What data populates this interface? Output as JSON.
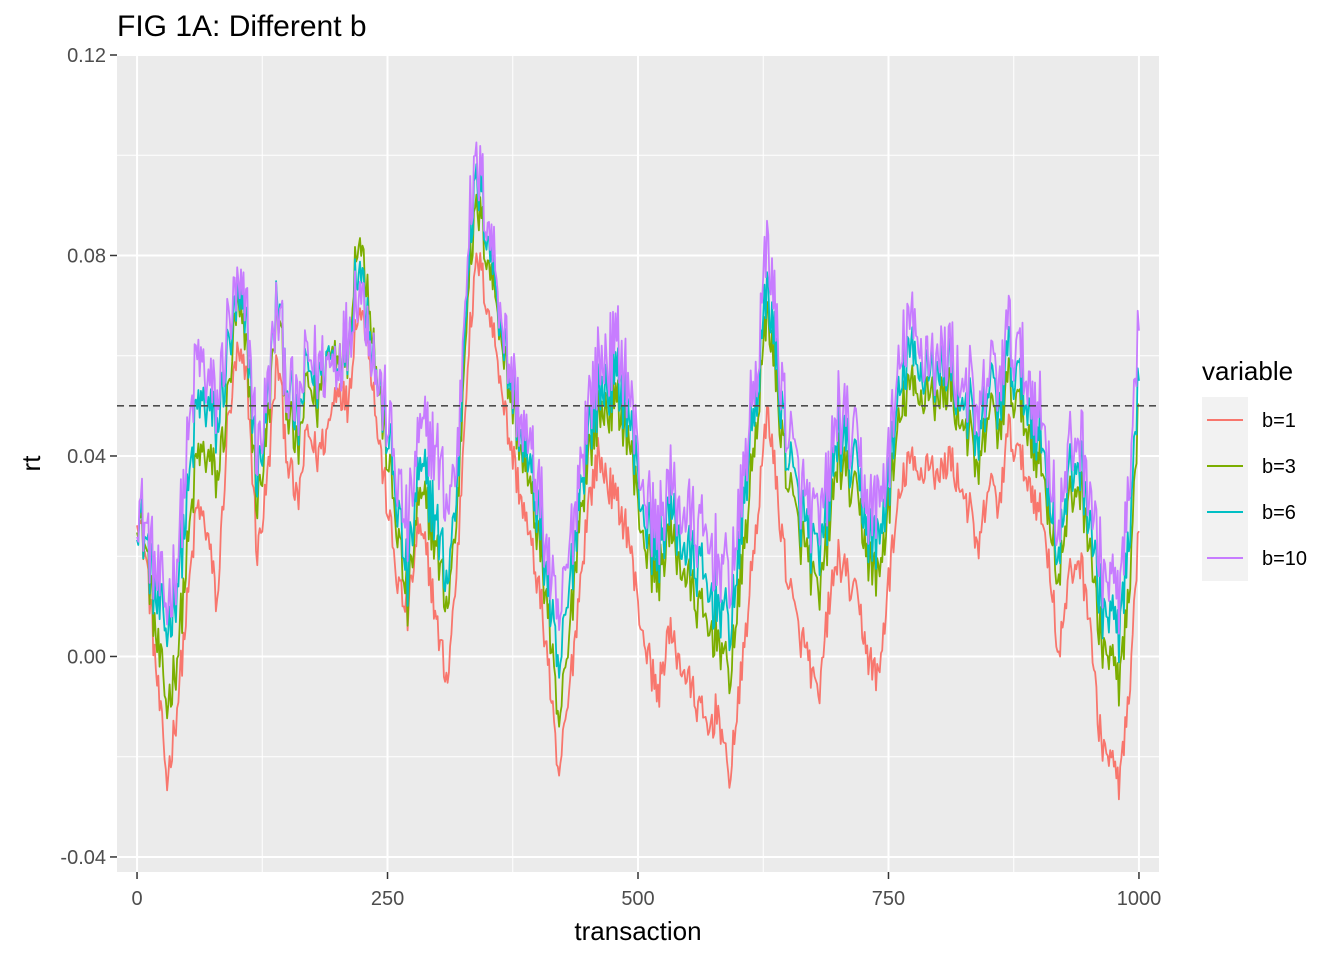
{
  "chart_data": {
    "type": "line",
    "title": "FIG 1A: Different b",
    "xlabel": "transaction",
    "ylabel": "rt",
    "xlim": [
      -20,
      1020
    ],
    "ylim": [
      -0.043,
      0.12
    ],
    "x_ticks": [
      0,
      250,
      500,
      750,
      1000
    ],
    "x_tick_labels": [
      "0",
      "250",
      "500",
      "750",
      "1000"
    ],
    "y_ticks": [
      -0.04,
      0.0,
      0.04,
      0.08,
      0.12
    ],
    "y_tick_labels": [
      "-0.04",
      "0.00",
      "0.04",
      "0.08",
      "0.12"
    ],
    "grid": true,
    "reference_line": {
      "y": 0.05,
      "style": "dashed"
    },
    "legend": {
      "title": "variable",
      "position": "right"
    },
    "x": [
      0,
      10,
      20,
      30,
      40,
      50,
      60,
      70,
      80,
      90,
      100,
      110,
      120,
      130,
      140,
      150,
      160,
      170,
      180,
      190,
      200,
      210,
      220,
      230,
      240,
      250,
      260,
      270,
      280,
      290,
      300,
      310,
      320,
      330,
      340,
      350,
      360,
      370,
      380,
      390,
      400,
      410,
      420,
      430,
      440,
      450,
      460,
      470,
      480,
      490,
      500,
      510,
      520,
      530,
      540,
      550,
      560,
      570,
      580,
      590,
      600,
      610,
      620,
      630,
      640,
      650,
      660,
      670,
      680,
      690,
      700,
      710,
      720,
      730,
      740,
      750,
      760,
      770,
      780,
      790,
      800,
      810,
      820,
      830,
      840,
      850,
      860,
      870,
      880,
      890,
      900,
      910,
      920,
      930,
      940,
      950,
      960,
      970,
      980,
      990,
      1000
    ],
    "series": [
      {
        "name": "b=1",
        "color": "#F8766D",
        "values": [
          0.03,
          0.018,
          -0.005,
          -0.025,
          -0.01,
          0.01,
          0.03,
          0.025,
          0.01,
          0.045,
          0.06,
          0.055,
          0.02,
          0.035,
          0.06,
          0.04,
          0.03,
          0.045,
          0.04,
          0.045,
          0.055,
          0.05,
          0.07,
          0.065,
          0.045,
          0.03,
          0.015,
          0.008,
          0.025,
          0.02,
          0.005,
          -0.005,
          0.02,
          0.06,
          0.08,
          0.07,
          0.06,
          0.045,
          0.035,
          0.025,
          0.015,
          0.0,
          -0.025,
          -0.01,
          0.01,
          0.03,
          0.04,
          0.035,
          0.03,
          0.025,
          0.01,
          0.0,
          -0.008,
          0.005,
          0.0,
          -0.005,
          -0.01,
          -0.015,
          -0.01,
          -0.025,
          -0.01,
          0.01,
          0.03,
          0.05,
          0.03,
          0.015,
          0.005,
          0.0,
          -0.01,
          0.01,
          0.02,
          0.015,
          0.01,
          0.0,
          -0.005,
          0.015,
          0.03,
          0.04,
          0.035,
          0.04,
          0.035,
          0.04,
          0.035,
          0.03,
          0.02,
          0.035,
          0.03,
          0.045,
          0.04,
          0.035,
          0.03,
          0.02,
          0.0,
          0.015,
          0.02,
          0.01,
          -0.015,
          -0.02,
          -0.025,
          -0.01,
          0.025
        ]
      },
      {
        "name": "b=3",
        "color": "#7CAE00",
        "values": [
          0.03,
          0.02,
          0.002,
          -0.01,
          0.0,
          0.02,
          0.04,
          0.04,
          0.035,
          0.05,
          0.07,
          0.06,
          0.03,
          0.045,
          0.07,
          0.05,
          0.04,
          0.055,
          0.05,
          0.06,
          0.062,
          0.06,
          0.085,
          0.075,
          0.055,
          0.04,
          0.025,
          0.01,
          0.03,
          0.03,
          0.02,
          0.01,
          0.03,
          0.075,
          0.09,
          0.08,
          0.07,
          0.055,
          0.045,
          0.035,
          0.025,
          0.01,
          -0.015,
          0.0,
          0.025,
          0.04,
          0.048,
          0.05,
          0.05,
          0.045,
          0.03,
          0.02,
          0.015,
          0.025,
          0.02,
          0.015,
          0.01,
          0.005,
          0.005,
          -0.005,
          0.01,
          0.03,
          0.05,
          0.07,
          0.05,
          0.035,
          0.025,
          0.02,
          0.01,
          0.025,
          0.04,
          0.035,
          0.03,
          0.02,
          0.015,
          0.03,
          0.045,
          0.055,
          0.05,
          0.055,
          0.05,
          0.055,
          0.048,
          0.045,
          0.035,
          0.05,
          0.045,
          0.055,
          0.05,
          0.045,
          0.04,
          0.03,
          0.015,
          0.03,
          0.035,
          0.025,
          0.005,
          0.0,
          -0.005,
          0.01,
          0.05
        ]
      },
      {
        "name": "b=6",
        "color": "#00BFC4",
        "values": [
          0.03,
          0.022,
          0.01,
          0.005,
          0.015,
          0.03,
          0.05,
          0.05,
          0.045,
          0.06,
          0.07,
          0.065,
          0.035,
          0.05,
          0.072,
          0.055,
          0.045,
          0.058,
          0.055,
          0.06,
          0.06,
          0.062,
          0.08,
          0.07,
          0.055,
          0.045,
          0.03,
          0.015,
          0.035,
          0.035,
          0.025,
          0.015,
          0.035,
          0.08,
          0.095,
          0.085,
          0.072,
          0.058,
          0.048,
          0.038,
          0.03,
          0.015,
          -0.005,
          0.01,
          0.03,
          0.045,
          0.052,
          0.055,
          0.055,
          0.05,
          0.035,
          0.025,
          0.02,
          0.03,
          0.025,
          0.02,
          0.018,
          0.012,
          0.012,
          0.005,
          0.018,
          0.04,
          0.055,
          0.075,
          0.055,
          0.04,
          0.03,
          0.025,
          0.018,
          0.03,
          0.045,
          0.04,
          0.035,
          0.025,
          0.022,
          0.035,
          0.05,
          0.062,
          0.055,
          0.06,
          0.055,
          0.06,
          0.052,
          0.05,
          0.04,
          0.055,
          0.05,
          0.06,
          0.055,
          0.05,
          0.045,
          0.035,
          0.02,
          0.035,
          0.04,
          0.03,
          0.012,
          0.008,
          0.005,
          0.02,
          0.055
        ]
      },
      {
        "name": "b=10",
        "color": "#C77CFF",
        "values": [
          0.032,
          0.025,
          0.015,
          0.01,
          0.02,
          0.04,
          0.06,
          0.055,
          0.05,
          0.065,
          0.072,
          0.068,
          0.04,
          0.052,
          0.07,
          0.055,
          0.048,
          0.06,
          0.058,
          0.058,
          0.06,
          0.064,
          0.075,
          0.068,
          0.055,
          0.048,
          0.035,
          0.025,
          0.042,
          0.045,
          0.04,
          0.03,
          0.04,
          0.085,
          0.098,
          0.088,
          0.075,
          0.06,
          0.05,
          0.042,
          0.035,
          0.02,
          0.005,
          0.018,
          0.035,
          0.05,
          0.058,
          0.06,
          0.062,
          0.055,
          0.04,
          0.03,
          0.025,
          0.035,
          0.03,
          0.028,
          0.025,
          0.022,
          0.02,
          0.015,
          0.025,
          0.045,
          0.06,
          0.085,
          0.06,
          0.045,
          0.035,
          0.03,
          0.025,
          0.035,
          0.05,
          0.045,
          0.04,
          0.03,
          0.03,
          0.04,
          0.055,
          0.068,
          0.06,
          0.062,
          0.058,
          0.062,
          0.055,
          0.055,
          0.045,
          0.058,
          0.055,
          0.065,
          0.06,
          0.055,
          0.05,
          0.04,
          0.025,
          0.04,
          0.045,
          0.035,
          0.02,
          0.015,
          0.012,
          0.03,
          0.065
        ]
      }
    ]
  }
}
